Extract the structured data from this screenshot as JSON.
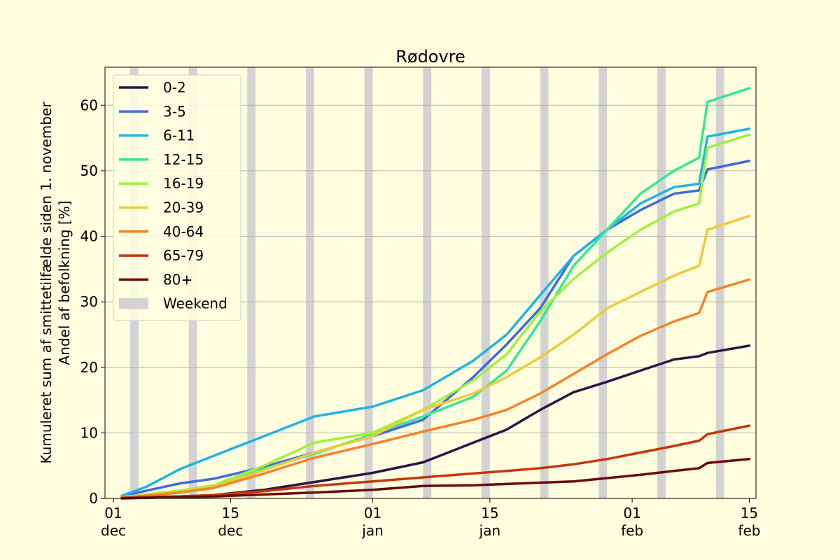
{
  "chart_data": {
    "type": "line",
    "title": "Rødovre",
    "ylabel_line1": "Kumuleret sum af smittetilfælde siden 1. november",
    "ylabel_line2": "Andel af befolkning [%]",
    "xlabel": "",
    "ylim": [
      0,
      65.8
    ],
    "yticks": [
      0,
      10,
      20,
      30,
      40,
      50,
      60
    ],
    "grid": "y",
    "legend_position": "top-left",
    "x_start": "2020-12-01",
    "x_end": "2021-02-14",
    "xticks": [
      {
        "date": "2020-12-01",
        "day": "01",
        "month": "dec"
      },
      {
        "date": "2020-12-15",
        "day": "15",
        "month": "dec"
      },
      {
        "date": "2021-01-01",
        "day": "01",
        "month": "jan"
      },
      {
        "date": "2021-01-15",
        "day": "15",
        "month": "jan"
      },
      {
        "date": "2021-02-01",
        "day": "01",
        "month": "feb"
      },
      {
        "date": "2021-02-15",
        "day": "15",
        "month": "feb"
      }
    ],
    "weekend_label": "Weekend",
    "weekend_color": "#d3d3d3",
    "weekend_ranges": [
      [
        "2020-12-03",
        "2020-12-04"
      ],
      [
        "2020-12-10",
        "2020-12-11"
      ],
      [
        "2020-12-17",
        "2020-12-18"
      ],
      [
        "2020-12-24",
        "2020-12-25"
      ],
      [
        "2020-12-31",
        "2021-01-01"
      ],
      [
        "2021-01-07",
        "2021-01-08"
      ],
      [
        "2021-01-14",
        "2021-01-15"
      ],
      [
        "2021-01-21",
        "2021-01-22"
      ],
      [
        "2021-01-28",
        "2021-01-29"
      ],
      [
        "2021-02-04",
        "2021-02-05"
      ],
      [
        "2021-02-11",
        "2021-02-12"
      ]
    ],
    "x": [
      "2020-12-02",
      "2020-12-05",
      "2020-12-09",
      "2020-12-13",
      "2020-12-19",
      "2020-12-25",
      "2021-01-01",
      "2021-01-07",
      "2021-01-13",
      "2021-01-17",
      "2021-01-21",
      "2021-01-25",
      "2021-01-29",
      "2021-02-02",
      "2021-02-06",
      "2021-02-09",
      "2021-02-10",
      "2021-02-15"
    ],
    "series": [
      {
        "name": "0-2",
        "color": "#2c1449",
        "values": [
          0.1,
          0.2,
          0.3,
          0.5,
          1.3,
          2.5,
          3.9,
          5.5,
          8.5,
          10.5,
          13.5,
          16.2,
          17.8,
          19.5,
          21.2,
          21.7,
          22.2,
          23.3
        ]
      },
      {
        "name": "3-5",
        "color": "#4169e1",
        "values": [
          0.3,
          1.2,
          2.3,
          3.0,
          4.8,
          7.0,
          9.5,
          12.0,
          18.5,
          23.5,
          29.0,
          37.0,
          41.0,
          44.0,
          46.5,
          47.0,
          50.2,
          51.5
        ]
      },
      {
        "name": "6-11",
        "color": "#1fb3e8",
        "values": [
          0.4,
          1.8,
          4.5,
          6.5,
          9.5,
          12.5,
          14.0,
          16.5,
          21.0,
          25.0,
          31.0,
          37.0,
          41.0,
          45.0,
          47.5,
          48.0,
          55.2,
          56.4
        ]
      },
      {
        "name": "12-15",
        "color": "#35e895",
        "values": [
          0.2,
          0.5,
          1.1,
          1.9,
          4.5,
          6.8,
          9.8,
          12.5,
          15.5,
          19.5,
          27.0,
          35.5,
          41.0,
          46.5,
          50.0,
          52.0,
          60.5,
          62.6
        ]
      },
      {
        "name": "16-19",
        "color": "#a0f040",
        "values": [
          0.2,
          0.6,
          1.2,
          2.0,
          5.0,
          8.5,
          10.0,
          13.5,
          18.0,
          22.0,
          28.5,
          33.5,
          37.5,
          41.0,
          43.8,
          45.0,
          53.5,
          55.5
        ]
      },
      {
        "name": "20-39",
        "color": "#f0c93a",
        "values": [
          0.2,
          0.5,
          1.0,
          1.8,
          4.3,
          7.0,
          9.5,
          13.5,
          16.0,
          18.5,
          21.5,
          25.0,
          29.0,
          31.5,
          34.0,
          35.5,
          41.0,
          43.1
        ]
      },
      {
        "name": "40-64",
        "color": "#f5832a",
        "values": [
          0.1,
          0.4,
          0.9,
          1.6,
          3.8,
          6.2,
          8.3,
          10.2,
          12.0,
          13.5,
          16.0,
          19.0,
          22.0,
          24.8,
          27.0,
          28.3,
          31.5,
          33.4
        ]
      },
      {
        "name": "65-79",
        "color": "#c9360c",
        "values": [
          0.1,
          0.2,
          0.3,
          0.5,
          1.1,
          1.9,
          2.6,
          3.2,
          3.8,
          4.2,
          4.6,
          5.2,
          6.0,
          7.0,
          8.0,
          8.8,
          9.8,
          11.1
        ]
      },
      {
        "name": "80+",
        "color": "#6b0b0b",
        "values": [
          0.0,
          0.1,
          0.2,
          0.3,
          0.6,
          0.9,
          1.3,
          1.9,
          2.0,
          2.2,
          2.4,
          2.6,
          3.1,
          3.6,
          4.2,
          4.6,
          5.4,
          6.0
        ]
      }
    ]
  }
}
